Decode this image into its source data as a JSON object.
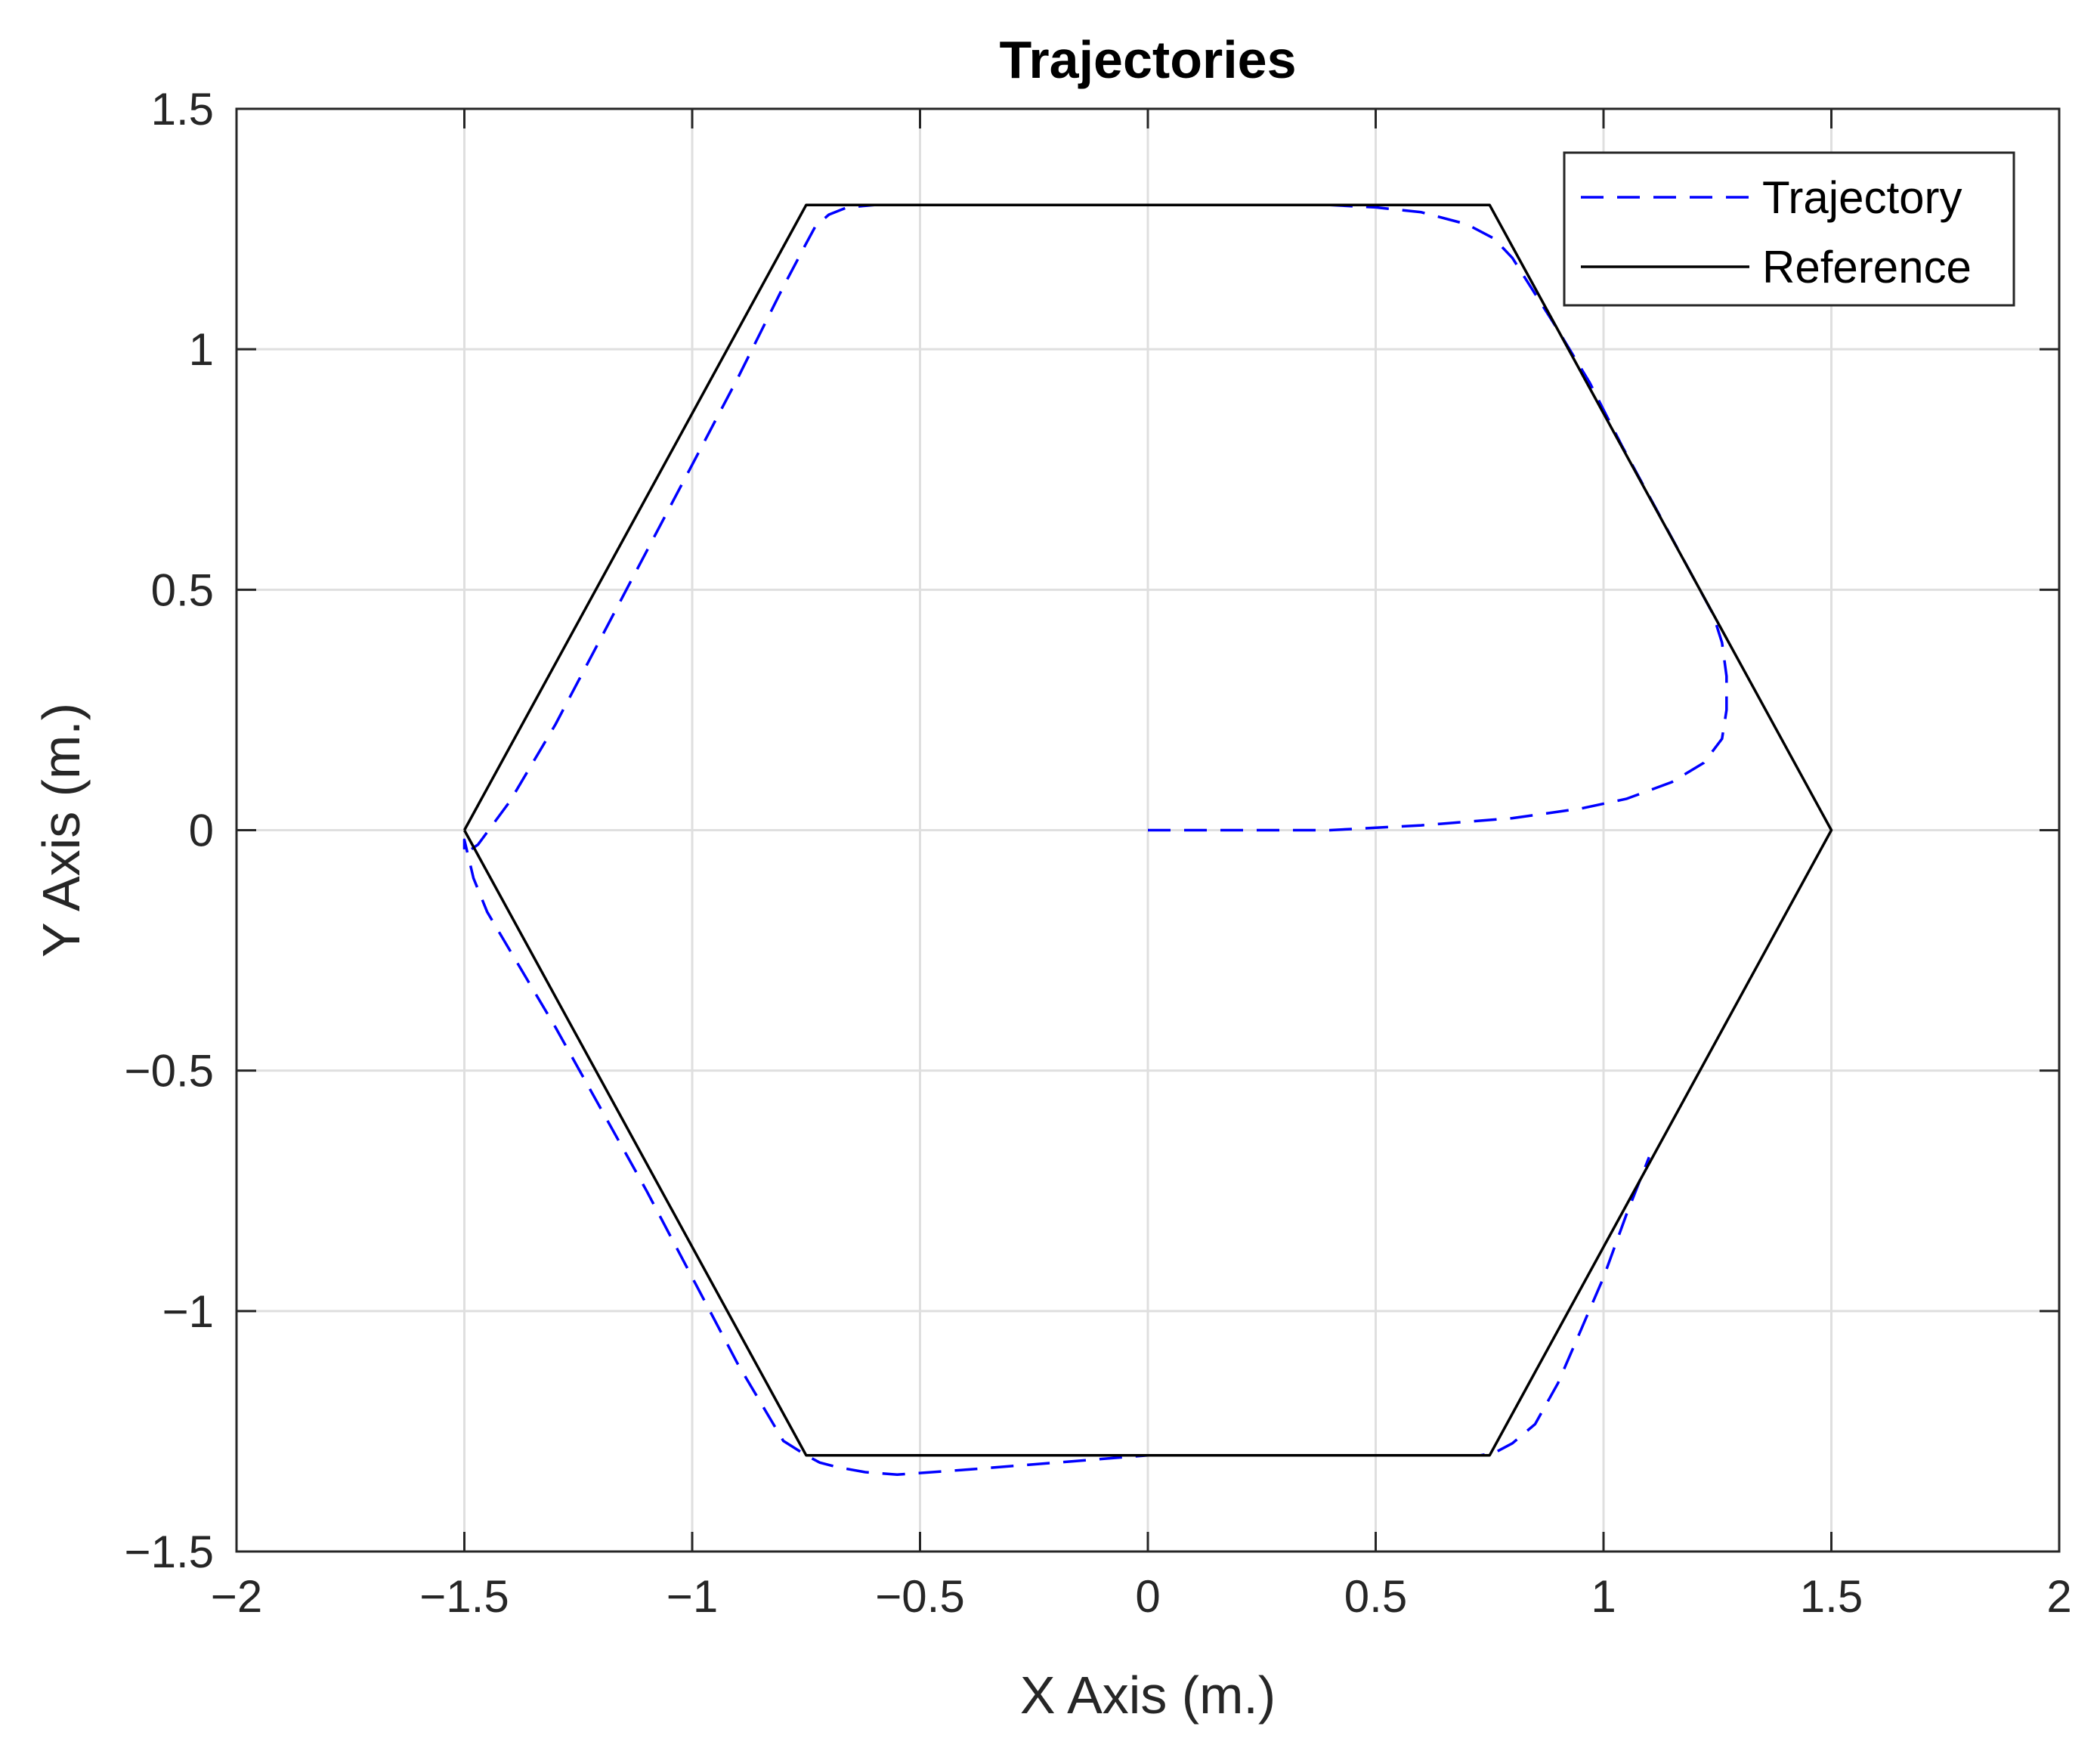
{
  "chart_data": {
    "type": "line",
    "title": "Trajectories",
    "xlabel": "X Axis (m.)",
    "ylabel": "Y Axis (m.)",
    "xlim": [
      -2,
      2
    ],
    "ylim": [
      -1.5,
      1.5
    ],
    "xticks": [
      -2,
      -1.5,
      -1,
      -0.5,
      0,
      0.5,
      1,
      1.5,
      2
    ],
    "yticks": [
      -1.5,
      -1,
      -0.5,
      0,
      0.5,
      1,
      1.5
    ],
    "xtick_labels": [
      "−2",
      "−1.5",
      "−1",
      "−0.5",
      "0",
      "0.5",
      "1",
      "1.5",
      "2"
    ],
    "ytick_labels": [
      "−1.5",
      "−1",
      "−0.5",
      "0",
      "0.5",
      "1",
      "1.5"
    ],
    "grid": true,
    "legend_position": "top-right",
    "series": [
      {
        "name": "Trajectory",
        "color": "#0000ff",
        "line_style": "dashed",
        "x": [
          0,
          0.2,
          0.4,
          0.6,
          0.8,
          0.95,
          1.05,
          1.15,
          1.22,
          1.26,
          1.27,
          1.27,
          1.26,
          1.24,
          1.2,
          1.12,
          1.04,
          0.97,
          0.9,
          0.84,
          0.8,
          0.76,
          0.7,
          0.6,
          0.5,
          0.4,
          0.3,
          0.1,
          -0.1,
          -0.3,
          -0.5,
          -0.6,
          -0.66,
          -0.7,
          -0.73,
          -0.75,
          -0.8,
          -0.9,
          -1.0,
          -1.1,
          -1.2,
          -1.3,
          -1.4,
          -1.47,
          -1.5,
          -1.5,
          -1.48,
          -1.45,
          -1.4,
          -1.3,
          -1.2,
          -1.1,
          -1.0,
          -0.9,
          -0.8,
          -0.75,
          -0.72,
          -0.68,
          -0.62,
          -0.55,
          -0.4,
          -0.2,
          0,
          0.2,
          0.4,
          0.6,
          0.73,
          0.76,
          0.8,
          0.85,
          0.9,
          0.95,
          1.0,
          1.05,
          1.1
        ],
        "y": [
          0,
          0,
          0,
          0.01,
          0.025,
          0.045,
          0.065,
          0.1,
          0.14,
          0.19,
          0.25,
          0.32,
          0.39,
          0.45,
          0.52,
          0.66,
          0.8,
          0.93,
          1.04,
          1.13,
          1.19,
          1.23,
          1.26,
          1.285,
          1.295,
          1.3,
          1.3,
          1.3,
          1.3,
          1.3,
          1.3,
          1.3,
          1.295,
          1.28,
          1.255,
          1.22,
          1.13,
          0.94,
          0.76,
          0.58,
          0.4,
          0.22,
          0.06,
          -0.03,
          -0.05,
          -0.02,
          -0.1,
          -0.17,
          -0.25,
          -0.41,
          -0.58,
          -0.75,
          -0.93,
          -1.11,
          -1.27,
          -1.3,
          -1.315,
          -1.325,
          -1.335,
          -1.34,
          -1.33,
          -1.315,
          -1.3,
          -1.3,
          -1.3,
          -1.3,
          -1.3,
          -1.295,
          -1.275,
          -1.235,
          -1.15,
          -1.04,
          -0.93,
          -0.8,
          -0.68
        ]
      },
      {
        "name": "Reference",
        "color": "#000000",
        "line_style": "solid",
        "x": [
          -1.5,
          -0.75,
          0.75,
          1.5,
          0.75,
          -0.75,
          -1.5
        ],
        "y": [
          0,
          1.3,
          1.3,
          0,
          -1.3,
          -1.3,
          0
        ]
      }
    ]
  }
}
